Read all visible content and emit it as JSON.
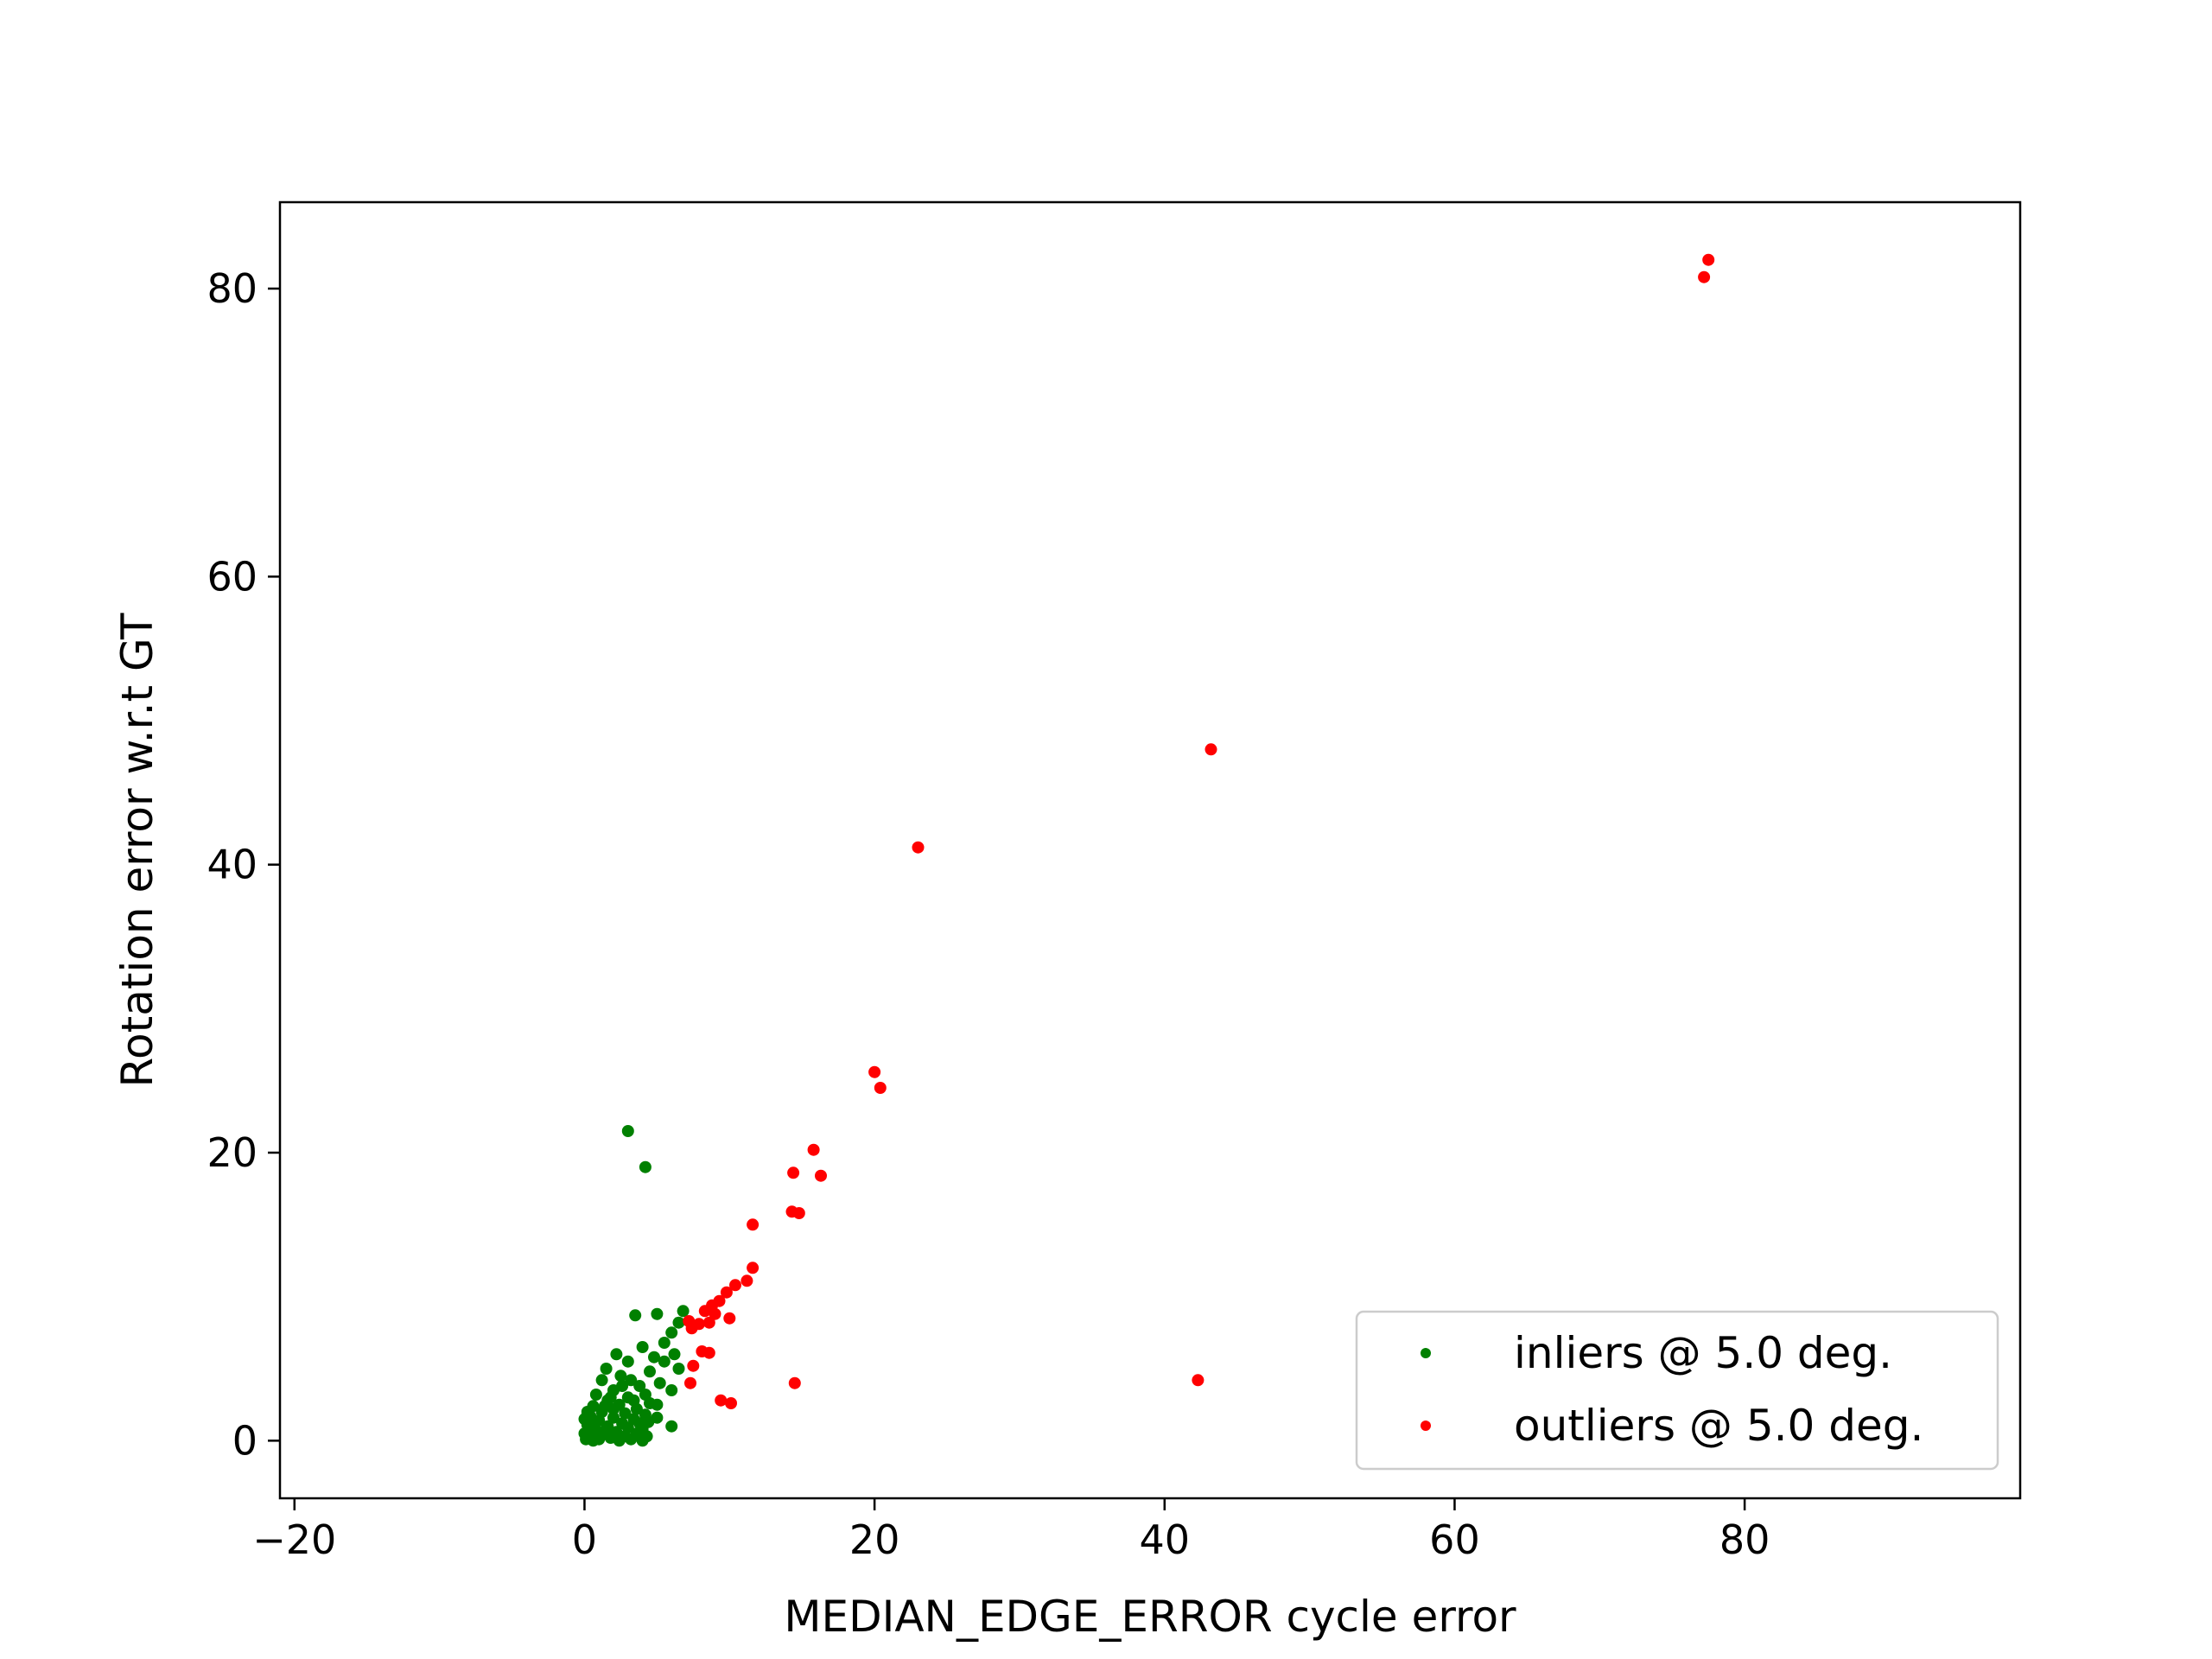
{
  "chart_data": {
    "type": "scatter",
    "title": "",
    "xlabel": "MEDIAN_EDGE_ERROR cycle error",
    "ylabel": "Rotation error w.r.t GT",
    "xlim": [
      -21,
      99
    ],
    "ylim": [
      -4,
      86
    ],
    "xticks": [
      -20,
      0,
      20,
      40,
      60,
      80
    ],
    "xtick_labels": [
      "−20",
      "0",
      "20",
      "40",
      "60",
      "80"
    ],
    "yticks": [
      0,
      20,
      40,
      60,
      80
    ],
    "ytick_labels": [
      "0",
      "20",
      "40",
      "60",
      "80"
    ],
    "grid": false,
    "legend_position": "lower-right",
    "series": [
      {
        "name": "inliers @ 5.0 deg.",
        "color": "#008000",
        "points": [
          [
            3.0,
            21.5
          ],
          [
            4.2,
            19.0
          ],
          [
            3.5,
            8.7
          ],
          [
            5.0,
            8.8
          ],
          [
            6.8,
            9.0
          ],
          [
            6.5,
            8.2
          ],
          [
            6.0,
            7.5
          ],
          [
            5.5,
            6.8
          ],
          [
            4.0,
            6.5
          ],
          [
            2.2,
            6.0
          ],
          [
            3.0,
            5.5
          ],
          [
            1.5,
            5.0
          ],
          [
            6.5,
            5.0
          ],
          [
            6.0,
            3.5
          ],
          [
            6.0,
            1.0
          ],
          [
            4.5,
            4.8
          ],
          [
            2.5,
            4.5
          ],
          [
            1.2,
            4.2
          ],
          [
            5.2,
            4.0
          ],
          [
            3.8,
            3.8
          ],
          [
            2.0,
            3.5
          ],
          [
            0.8,
            3.2
          ],
          [
            4.2,
            3.2
          ],
          [
            3.0,
            3.0
          ],
          [
            1.6,
            2.8
          ],
          [
            4.5,
            2.6
          ],
          [
            2.4,
            2.5
          ],
          [
            0.6,
            2.4
          ],
          [
            3.6,
            2.2
          ],
          [
            1.2,
            2.0
          ],
          [
            2.8,
            1.9
          ],
          [
            4.2,
            1.8
          ],
          [
            0.4,
            1.7
          ],
          [
            2.0,
            1.6
          ],
          [
            3.4,
            1.5
          ],
          [
            1.0,
            1.4
          ],
          [
            4.4,
            1.3
          ],
          [
            2.6,
            1.2
          ],
          [
            0.2,
            1.1
          ],
          [
            1.6,
            1.0
          ],
          [
            3.0,
            0.9
          ],
          [
            4.0,
            0.8
          ],
          [
            0.8,
            0.7
          ],
          [
            2.2,
            0.6
          ],
          [
            3.6,
            0.5
          ],
          [
            1.2,
            0.4
          ],
          [
            0.3,
            0.3
          ],
          [
            2.8,
            0.3
          ],
          [
            4.3,
            0.3
          ],
          [
            1.8,
            0.2
          ],
          [
            0.1,
            0.1
          ],
          [
            1.0,
            0.1
          ],
          [
            3.2,
            0.1
          ],
          [
            2.4,
            0.0
          ],
          [
            0.6,
            0.0
          ],
          [
            4.0,
            0.0
          ],
          [
            5.0,
            2.5
          ],
          [
            5.5,
            5.5
          ],
          [
            6.2,
            6.0
          ],
          [
            4.8,
            5.8
          ],
          [
            3.2,
            4.2
          ],
          [
            2.6,
            3.8
          ],
          [
            1.8,
            3.0
          ],
          [
            0.5,
            1.2
          ],
          [
            0.2,
            2.0
          ],
          [
            1.4,
            2.4
          ],
          [
            3.8,
            1.2
          ],
          [
            5.0,
            1.6
          ],
          [
            0.0,
            0.5
          ],
          [
            0.0,
            1.5
          ],
          [
            0.4,
            0.9
          ],
          [
            1.5,
            0.8
          ],
          [
            2.0,
            2.2
          ],
          [
            3.4,
            2.8
          ]
        ]
      },
      {
        "name": "outliers @ 5.0 deg.",
        "color": "#ff0000",
        "points": [
          [
            77.5,
            82.0
          ],
          [
            77.2,
            80.8
          ],
          [
            43.2,
            48.0
          ],
          [
            23.0,
            41.2
          ],
          [
            20.0,
            25.6
          ],
          [
            20.4,
            24.5
          ],
          [
            15.8,
            20.2
          ],
          [
            16.3,
            18.4
          ],
          [
            14.4,
            18.6
          ],
          [
            11.6,
            15.0
          ],
          [
            14.3,
            15.9
          ],
          [
            14.8,
            15.8
          ],
          [
            11.6,
            12.0
          ],
          [
            11.2,
            11.1
          ],
          [
            10.4,
            10.8
          ],
          [
            9.8,
            10.3
          ],
          [
            9.3,
            9.7
          ],
          [
            8.8,
            9.4
          ],
          [
            8.3,
            9.0
          ],
          [
            9.0,
            8.8
          ],
          [
            10.0,
            8.5
          ],
          [
            8.6,
            8.2
          ],
          [
            7.9,
            8.1
          ],
          [
            7.4,
            7.8
          ],
          [
            7.2,
            8.3
          ],
          [
            7.5,
            5.2
          ],
          [
            7.3,
            4.0
          ],
          [
            8.1,
            6.2
          ],
          [
            8.6,
            6.1
          ],
          [
            9.4,
            2.8
          ],
          [
            10.1,
            2.6
          ],
          [
            14.5,
            4.0
          ],
          [
            42.3,
            4.2
          ]
        ]
      }
    ]
  }
}
